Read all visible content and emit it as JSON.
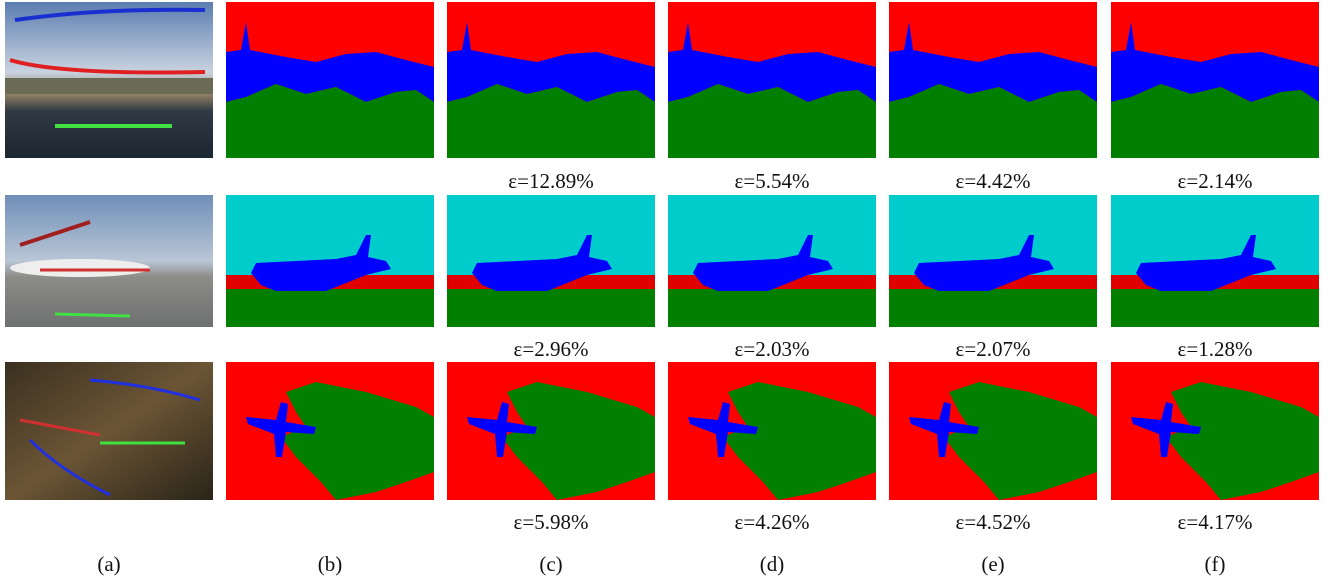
{
  "columns": [
    "(a)",
    "(b)",
    "(c)",
    "(d)",
    "(e)",
    "(f)"
  ],
  "rows": [
    {
      "errors": [
        "ε=12.89%",
        "ε=5.54%",
        "ε=4.42%",
        "ε=2.14%"
      ]
    },
    {
      "errors": [
        "ε=2.96%",
        "ε=2.03%",
        "ε=2.07%",
        "ε=1.28%"
      ]
    },
    {
      "errors": [
        "ε=5.98%",
        "ε=4.26%",
        "ε=4.52%",
        "ε=4.17%"
      ]
    }
  ]
}
